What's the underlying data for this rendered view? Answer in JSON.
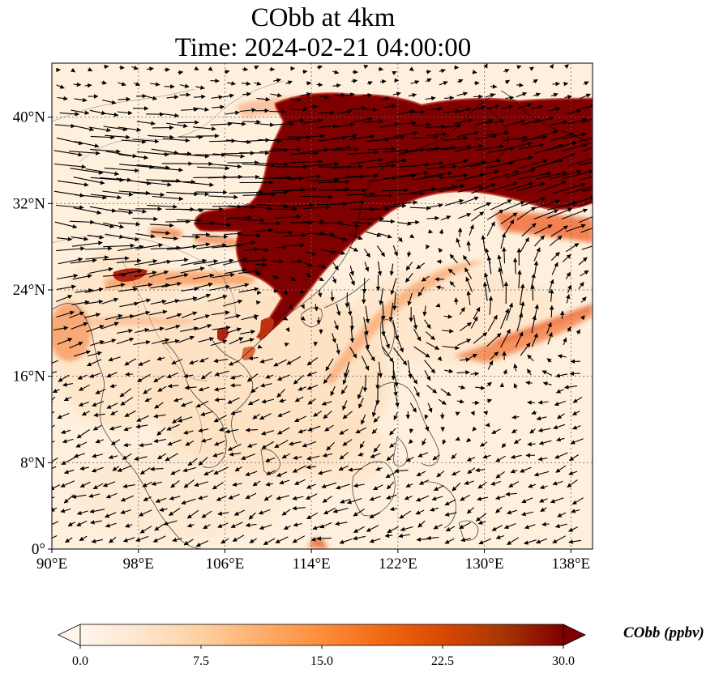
{
  "title_line1": "CObb at 4km",
  "title_line2": "Time: 2024-02-21 04:00:00",
  "map": {
    "lon_range": [
      90,
      140
    ],
    "lat_range": [
      0,
      45
    ],
    "lon_ticks": [
      90,
      98,
      106,
      114,
      122,
      130,
      138
    ],
    "lat_ticks": [
      0,
      8,
      16,
      24,
      32,
      40
    ],
    "lon_labels": [
      "90°E",
      "98°E",
      "106°E",
      "114°E",
      "122°E",
      "130°E",
      "138°E"
    ],
    "lat_labels": [
      "0°",
      "8°N",
      "16°N",
      "24°N",
      "32°N",
      "40°N"
    ],
    "gridlines": true,
    "field": "CObb",
    "level": "4km",
    "plume_color": "#7f0000",
    "low_color": "#fff5eb"
  },
  "colorbar": {
    "label": "CObb (ppbv)",
    "min": 0.0,
    "max": 30.0,
    "tick_values": [
      0.0,
      7.5,
      15.0,
      22.5,
      30.0
    ],
    "tick_labels": [
      "0.0",
      "7.5",
      "15.0",
      "22.5",
      "30.0"
    ],
    "colormap": [
      "#fff5eb",
      "#fee6ce",
      "#fdd0a2",
      "#fdae6b",
      "#fd8d3c",
      "#f16913",
      "#d94801",
      "#a63603",
      "#7f0000"
    ],
    "extend": "both"
  }
}
